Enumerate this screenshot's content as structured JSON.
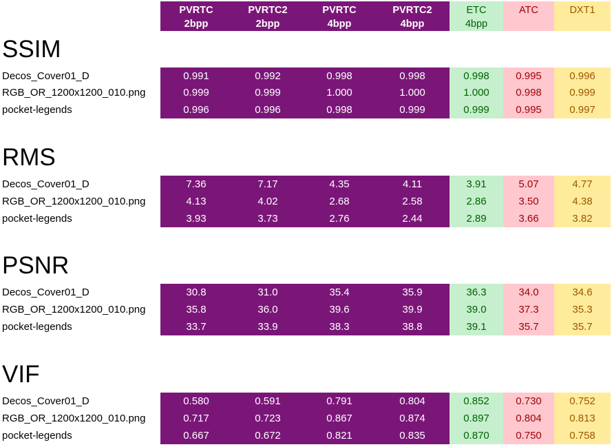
{
  "columns": [
    {
      "line1": "PVRTC",
      "line2": "2bpp",
      "style": "pv"
    },
    {
      "line1": "PVRTC2",
      "line2": "2bpp",
      "style": "pv"
    },
    {
      "line1": "PVRTC",
      "line2": "4bpp",
      "style": "pv"
    },
    {
      "line1": "PVRTC2",
      "line2": "4bpp",
      "style": "pv"
    },
    {
      "line1": "ETC",
      "line2": "4bpp",
      "style": "etc"
    },
    {
      "line1": "ATC",
      "line2": "",
      "style": "atc"
    },
    {
      "line1": "DXT1",
      "line2": "",
      "style": "dxt"
    }
  ],
  "colors": {
    "purple": "#7B1679",
    "etc_bg": "#C6EFCE",
    "etc_text": "#006100",
    "atc_bg": "#FFC7CE",
    "atc_text": "#9C0006",
    "dxt_bg": "#FFEB9C",
    "dxt_text": "#9C5700"
  },
  "sections": [
    {
      "title": "SSIM",
      "rows": [
        {
          "label": "Decos_Cover01_D",
          "values": [
            "0.991",
            "0.992",
            "0.998",
            "0.998",
            "0.998",
            "0.995",
            "0.996"
          ]
        },
        {
          "label": "RGB_OR_1200x1200_010.png",
          "values": [
            "0.999",
            "0.999",
            "1.000",
            "1.000",
            "1.000",
            "0.998",
            "0.999"
          ]
        },
        {
          "label": "pocket-legends",
          "values": [
            "0.996",
            "0.996",
            "0.998",
            "0.999",
            "0.999",
            "0.995",
            "0.997"
          ]
        }
      ]
    },
    {
      "title": "RMS",
      "rows": [
        {
          "label": "Decos_Cover01_D",
          "values": [
            "7.36",
            "7.17",
            "4.35",
            "4.11",
            "3.91",
            "5.07",
            "4.77"
          ]
        },
        {
          "label": "RGB_OR_1200x1200_010.png",
          "values": [
            "4.13",
            "4.02",
            "2.68",
            "2.58",
            "2.86",
            "3.50",
            "4.38"
          ]
        },
        {
          "label": "pocket-legends",
          "values": [
            "3.93",
            "3.73",
            "2.76",
            "2.44",
            "2.89",
            "3.66",
            "3.82"
          ]
        }
      ]
    },
    {
      "title": "PSNR",
      "rows": [
        {
          "label": "Decos_Cover01_D",
          "values": [
            "30.8",
            "31.0",
            "35.4",
            "35.9",
            "36.3",
            "34.0",
            "34.6"
          ]
        },
        {
          "label": "RGB_OR_1200x1200_010.png",
          "values": [
            "35.8",
            "36.0",
            "39.6",
            "39.9",
            "39.0",
            "37.3",
            "35.3"
          ]
        },
        {
          "label": "pocket-legends",
          "values": [
            "33.7",
            "33.9",
            "38.3",
            "38.8",
            "39.1",
            "35.7",
            "35.7"
          ]
        }
      ]
    },
    {
      "title": "VIF",
      "rows": [
        {
          "label": "Decos_Cover01_D",
          "values": [
            "0.580",
            "0.591",
            "0.791",
            "0.804",
            "0.852",
            "0.730",
            "0.752"
          ]
        },
        {
          "label": "RGB_OR_1200x1200_010.png",
          "values": [
            "0.717",
            "0.723",
            "0.867",
            "0.874",
            "0.897",
            "0.804",
            "0.813"
          ]
        },
        {
          "label": "pocket-legends",
          "values": [
            "0.667",
            "0.672",
            "0.821",
            "0.835",
            "0.870",
            "0.750",
            "0.758"
          ]
        }
      ]
    }
  ]
}
